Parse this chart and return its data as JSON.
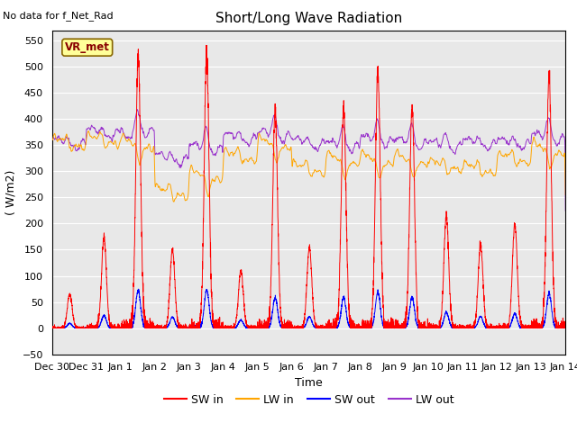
{
  "title": "Short/Long Wave Radiation",
  "xlabel": "Time",
  "ylabel": "( W/m2)",
  "note": "No data for f_Net_Rad",
  "legend_label": "VR_met",
  "ylim": [
    -50,
    570
  ],
  "yticks": [
    -50,
    0,
    50,
    100,
    150,
    200,
    250,
    300,
    350,
    400,
    450,
    500,
    550
  ],
  "background_color": "#e8e8e8",
  "sw_in_color": "#ff0000",
  "lw_in_color": "#ffa500",
  "sw_out_color": "#0000ff",
  "lw_out_color": "#9933cc",
  "title_fontsize": 11,
  "axis_fontsize": 9,
  "tick_fontsize": 8,
  "legend_fontsize": 9,
  "xtick_labels": [
    "Dec 30",
    "Dec 31",
    "Jan 1",
    "Jan 2",
    "Jan 3",
    "Jan 4",
    "Jan 5",
    "Jan 6",
    "Jan 7",
    "Jan 8",
    "Jan 9",
    "Jan 10",
    "Jan 11",
    "Jan 12",
    "Jan 13",
    "Jan 14"
  ],
  "sw_in_peaks": [
    65,
    175,
    520,
    150,
    520,
    110,
    415,
    155,
    420,
    490,
    420,
    215,
    160,
    200,
    480,
    0
  ],
  "sw_out_ratio": 0.14,
  "lw_in_day_means": [
    355,
    360,
    355,
    260,
    295,
    330,
    355,
    305,
    325,
    325,
    325,
    310,
    305,
    325,
    345,
    345
  ],
  "lw_out_day_means": [
    355,
    375,
    380,
    325,
    345,
    365,
    370,
    355,
    350,
    360,
    355,
    350,
    355,
    355,
    365,
    355
  ]
}
